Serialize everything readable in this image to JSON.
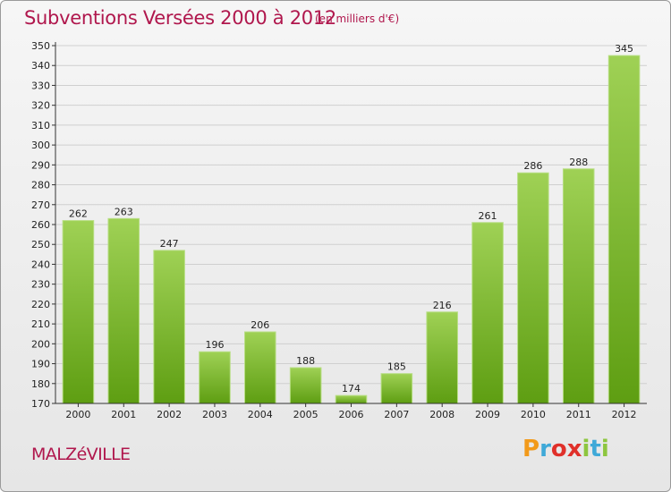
{
  "header": {
    "title": "Subventions Versées 2000 à 2012",
    "subtitle": "(en milliers d'€)"
  },
  "footer": {
    "location": "MALZéVILLE",
    "brand": "Proxiti",
    "brand_colors": [
      "#f29a1a",
      "#3fa9d8",
      "#e0302a",
      "#e0302a",
      "#8dc63f",
      "#3fa9d8",
      "#8dc63f"
    ]
  },
  "colors": {
    "accent": "#b0174d",
    "bar_top": "#9fd155",
    "bar_bottom": "#5e9e12",
    "axis": "#333333"
  },
  "chart_data": {
    "type": "bar",
    "title": "Subventions Versées 2000 à 2012",
    "subtitle": "(en milliers d'€)",
    "xlabel": "",
    "ylabel": "",
    "categories": [
      "2000",
      "2001",
      "2002",
      "2003",
      "2004",
      "2005",
      "2006",
      "2007",
      "2008",
      "2009",
      "2010",
      "2011",
      "2012"
    ],
    "values": [
      262,
      263,
      247,
      196,
      206,
      188,
      174,
      185,
      216,
      261,
      286,
      288,
      345
    ],
    "ylim": [
      170,
      350
    ],
    "yticks": [
      170,
      180,
      190,
      200,
      210,
      220,
      230,
      240,
      250,
      260,
      270,
      280,
      290,
      300,
      310,
      320,
      330,
      340,
      350
    ],
    "data_labels": true,
    "grid": true,
    "legend": "none"
  }
}
